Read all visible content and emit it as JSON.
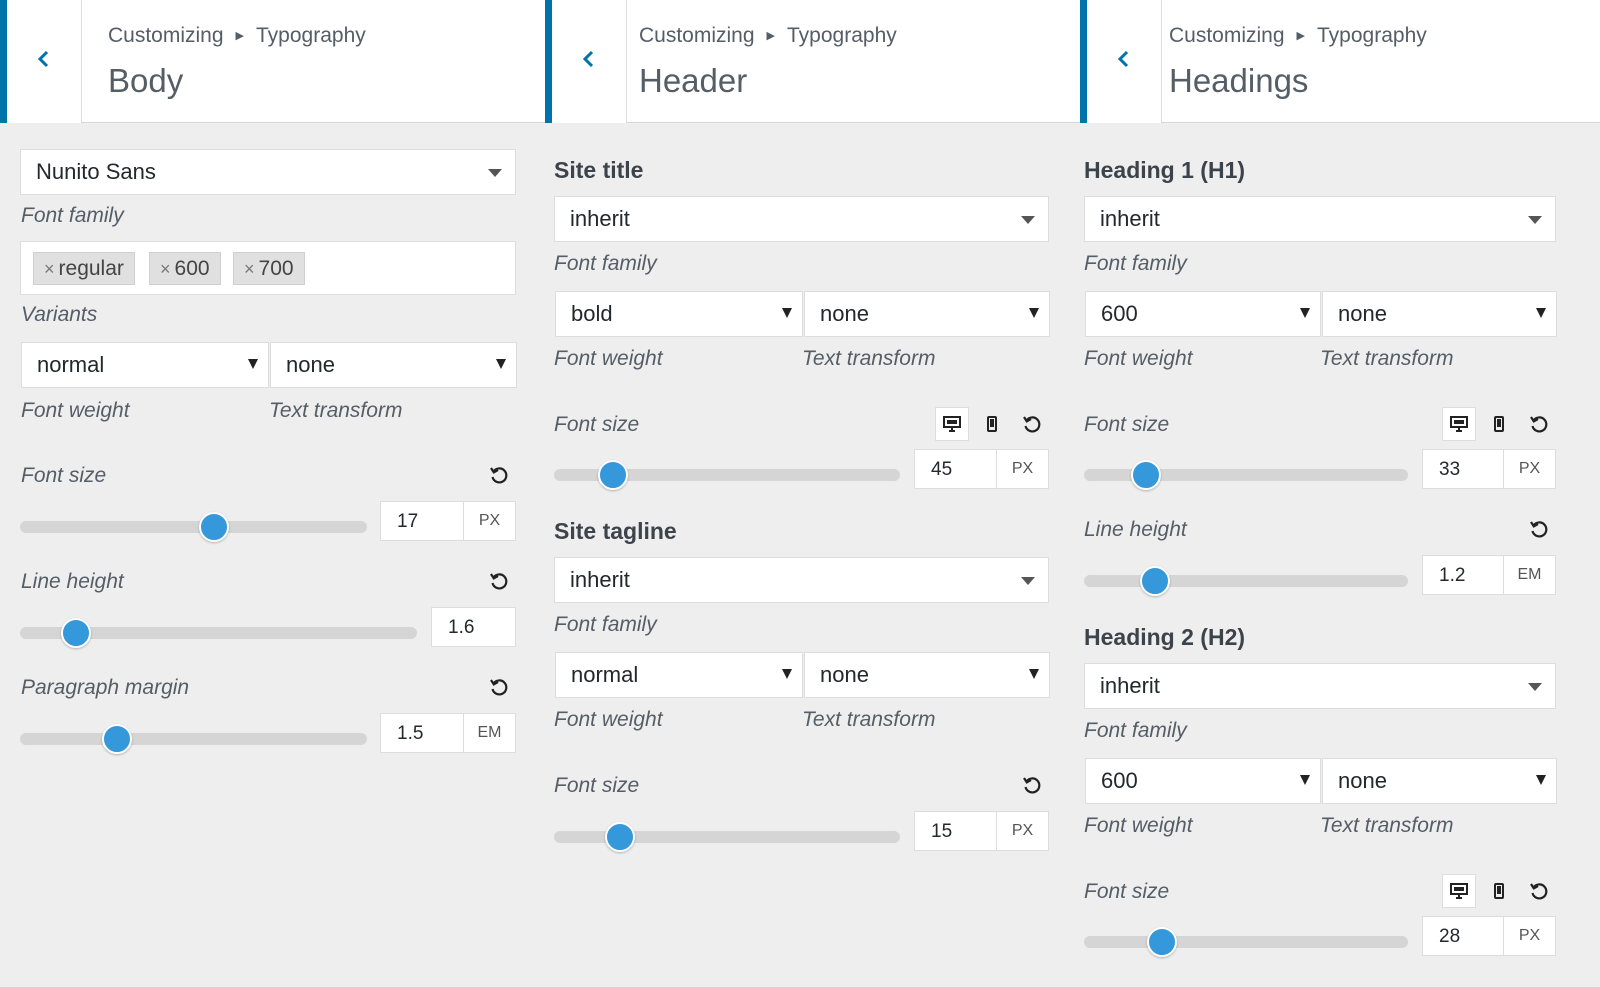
{
  "breadcrumb": {
    "root": "Customizing",
    "section": "Typography"
  },
  "colors": {
    "accent": "#0073aa",
    "slider_thumb": "#3498db"
  },
  "body": {
    "title": "Body",
    "font_family": {
      "value": "Nunito Sans",
      "label": "Font family"
    },
    "variants": {
      "tags": [
        "regular",
        "600",
        "700"
      ],
      "label": "Variants"
    },
    "font_weight": {
      "value": "normal",
      "label": "Font weight"
    },
    "text_transform": {
      "value": "none",
      "label": "Text transform"
    },
    "font_size": {
      "label": "Font size",
      "value": "17",
      "unit": "PX",
      "slider_fraction": 0.56
    },
    "line_height": {
      "label": "Line height",
      "value": "1.6",
      "slider_fraction": 0.14
    },
    "paragraph_margin": {
      "label": "Paragraph margin",
      "value": "1.5",
      "unit": "EM",
      "slider_fraction": 0.28
    }
  },
  "header": {
    "title": "Header",
    "site_title": {
      "heading": "Site title",
      "font_family": {
        "value": "inherit",
        "label": "Font family"
      },
      "font_weight": {
        "value": "bold",
        "label": "Font weight"
      },
      "text_transform": {
        "value": "none",
        "label": "Text transform"
      },
      "font_size": {
        "label": "Font size",
        "value": "45",
        "unit": "PX",
        "slider_fraction": 0.17
      }
    },
    "site_tagline": {
      "heading": "Site tagline",
      "font_family": {
        "value": "inherit",
        "label": "Font family"
      },
      "font_weight": {
        "value": "normal",
        "label": "Font weight"
      },
      "text_transform": {
        "value": "none",
        "label": "Text transform"
      },
      "font_size": {
        "label": "Font size",
        "value": "15",
        "unit": "PX",
        "slider_fraction": 0.19
      }
    }
  },
  "headings": {
    "title": "Headings",
    "h1": {
      "heading": "Heading 1 (H1)",
      "font_family": {
        "value": "inherit",
        "label": "Font family"
      },
      "font_weight": {
        "value": "600",
        "label": "Font weight"
      },
      "text_transform": {
        "value": "none",
        "label": "Text transform"
      },
      "font_size": {
        "label": "Font size",
        "value": "33",
        "unit": "PX",
        "slider_fraction": 0.19
      },
      "line_height": {
        "label": "Line height",
        "value": "1.2",
        "unit": "EM",
        "slider_fraction": 0.22
      }
    },
    "h2": {
      "heading": "Heading 2 (H2)",
      "font_family": {
        "value": "inherit",
        "label": "Font family"
      },
      "font_weight": {
        "value": "600",
        "label": "Font weight"
      },
      "text_transform": {
        "value": "none",
        "label": "Text transform"
      },
      "font_size": {
        "label": "Font size",
        "value": "28",
        "unit": "PX",
        "slider_fraction": 0.24
      }
    }
  },
  "icons": {
    "back": "chevron-left-icon",
    "desktop": "desktop-icon",
    "mobile": "mobile-icon",
    "reset": "reset-icon"
  }
}
